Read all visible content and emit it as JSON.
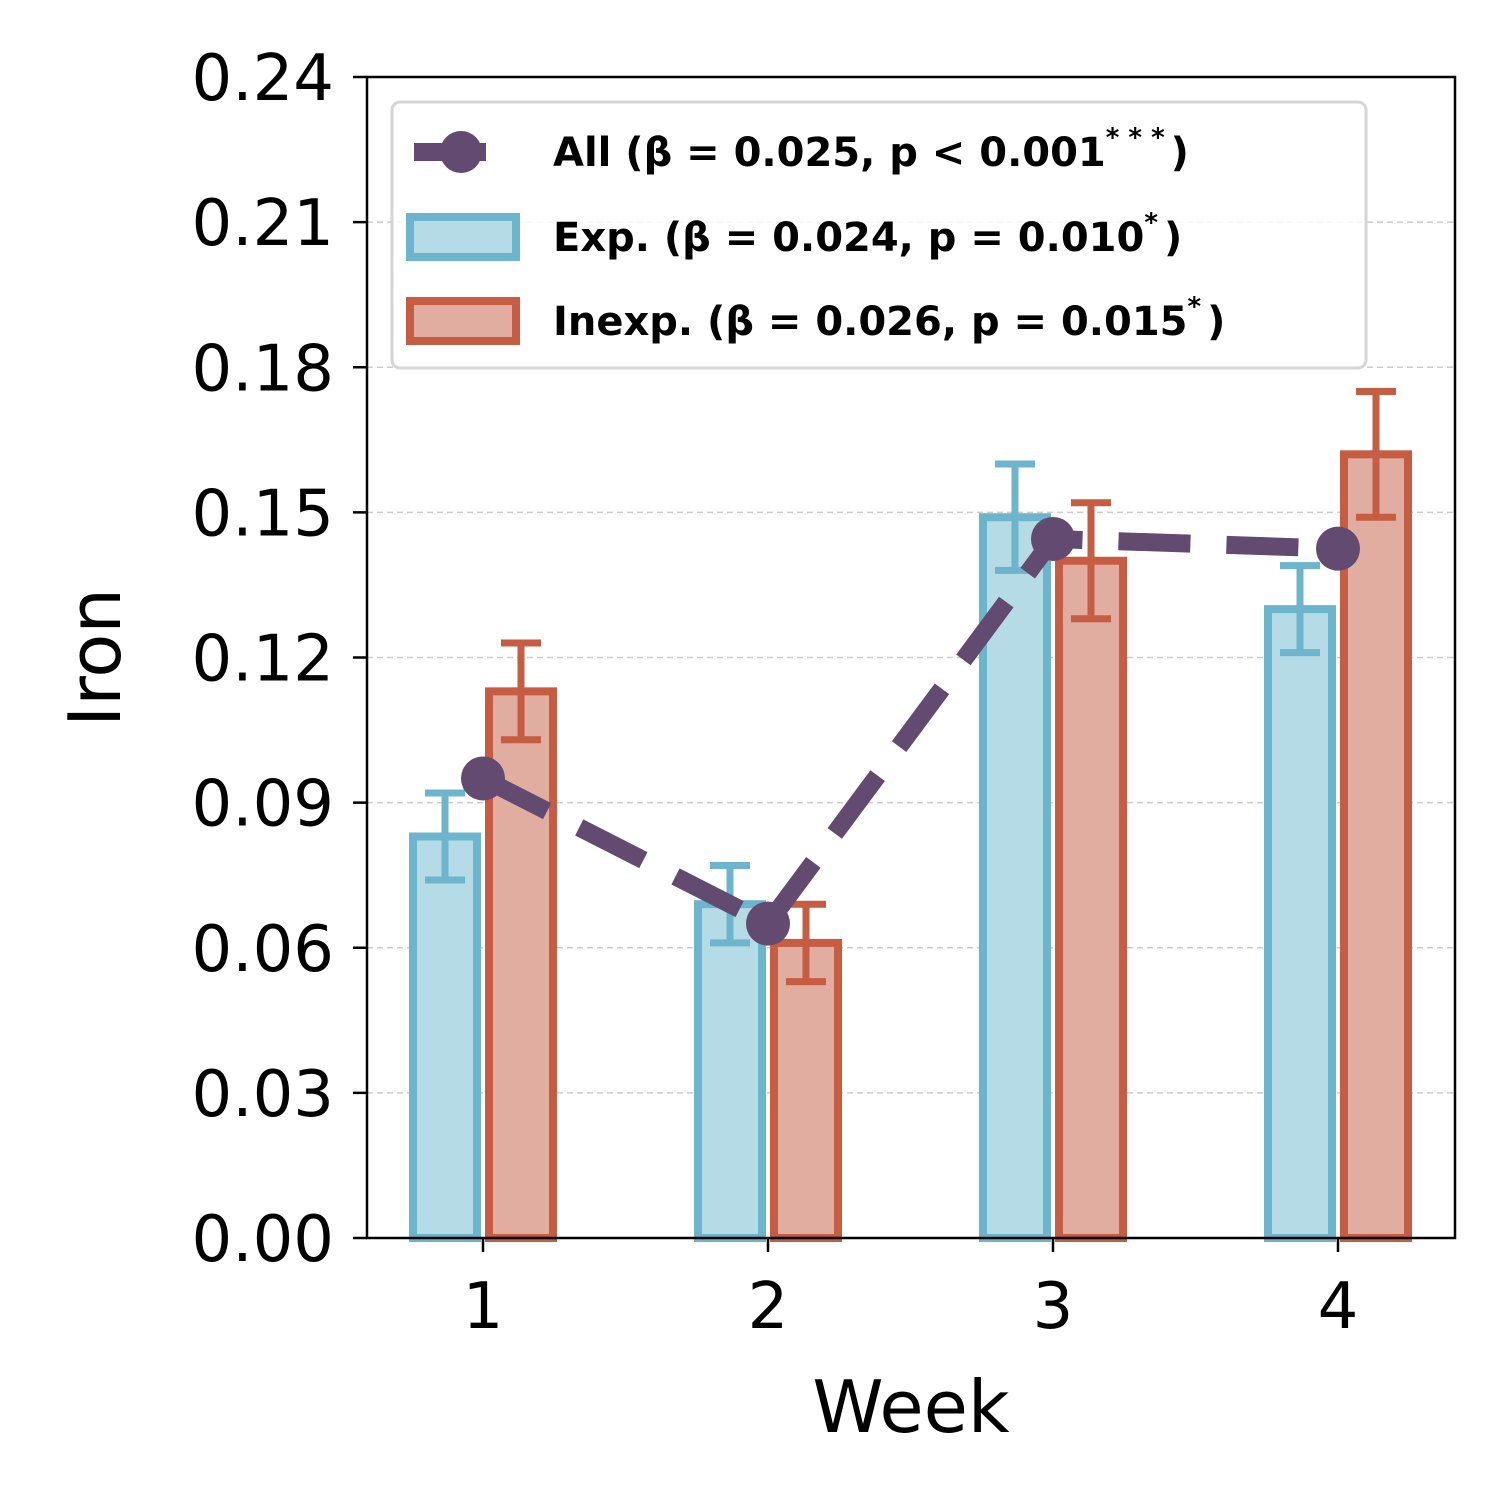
{
  "chart_data": {
    "type": "bar",
    "title": "",
    "xlabel": "Week",
    "ylabel": "Iron",
    "ylim": [
      0,
      0.24
    ],
    "yticks": [
      "0.00",
      "0.03",
      "0.06",
      "0.09",
      "0.12",
      "0.15",
      "0.18",
      "0.21",
      "0.24"
    ],
    "categories": [
      "1",
      "2",
      "3",
      "4"
    ],
    "grid": "horizontal dashed",
    "legend_position": "top-left",
    "series": [
      {
        "name": "Exp.",
        "legend_prefix": "Exp. (β = 0.024, p = 0.010",
        "legend_sup": "*",
        "legend_suffix": ")",
        "kind": "bar",
        "values": [
          0.083,
          0.069,
          0.149,
          0.13
        ],
        "err": [
          0.009,
          0.008,
          0.011,
          0.009
        ],
        "fill": "#b5dbe6",
        "edge": "#6cb5cd"
      },
      {
        "name": "Inexp.",
        "legend_prefix": "Inexp. (β = 0.026, p = 0.015",
        "legend_sup": "*",
        "legend_suffix": ")",
        "kind": "bar",
        "values": [
          0.113,
          0.061,
          0.14,
          0.162
        ],
        "err": [
          0.01,
          0.008,
          0.012,
          0.013
        ],
        "fill": "#e1ada0",
        "edge": "#c65c41"
      },
      {
        "name": "All",
        "legend_prefix": "All (β = 0.025, p < 0.001",
        "legend_sup": "* * *",
        "legend_suffix": ")",
        "kind": "line",
        "values": [
          0.095,
          0.065,
          0.1445,
          0.1425
        ],
        "color": "#634a71"
      }
    ]
  }
}
